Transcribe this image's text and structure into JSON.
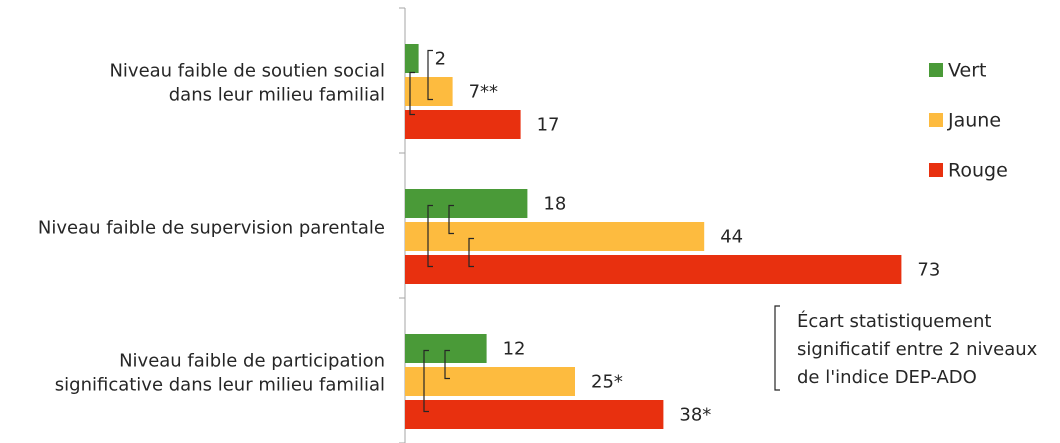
{
  "chart_data": {
    "type": "bar",
    "orientation": "horizontal",
    "categories": [
      [
        "Niveau faible de soutien social",
        "dans leur milieu familial"
      ],
      [
        "Niveau faible de supervision parentale"
      ],
      [
        "Niveau faible de participation",
        "significative dans leur milieu familial"
      ]
    ],
    "series": [
      {
        "name": "Vert",
        "color": "#4a9a38",
        "values": [
          2,
          18,
          12
        ],
        "labels": [
          "2",
          "18",
          "12"
        ]
      },
      {
        "name": "Jaune",
        "color": "#fdbb3f",
        "values": [
          7,
          44,
          25
        ],
        "labels": [
          "7**",
          "44",
          "25*"
        ]
      },
      {
        "name": "Rouge",
        "color": "#e8300f",
        "values": [
          17,
          73,
          38
        ],
        "labels": [
          "17",
          "73",
          "38*"
        ]
      }
    ],
    "xlim": [
      0,
      100
    ],
    "grid": false,
    "legend_position": "right",
    "note": [
      "Écart statistiquement",
      "significatif entre 2 niveaux",
      "de l'indice DEP-ADO"
    ]
  }
}
